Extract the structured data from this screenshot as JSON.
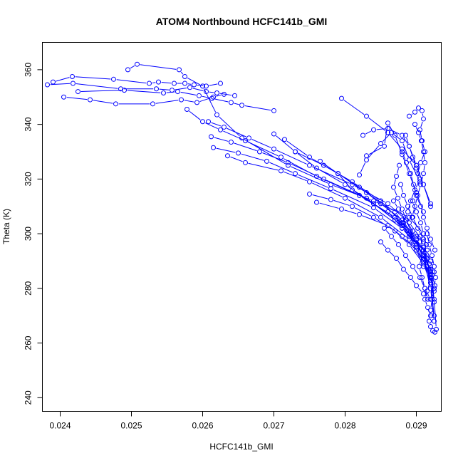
{
  "chart_data": {
    "type": "scatter",
    "title": "ATOM4 Northbound HCFC141b_GMI",
    "xlabel": "HCFC141b_GMI",
    "ylabel": "Theta (K)",
    "xlim": [
      0.02375,
      0.02935
    ],
    "ylim": [
      235,
      370
    ],
    "xticks": [
      "0.024",
      "0.025",
      "0.026",
      "0.027",
      "0.028",
      "0.029"
    ],
    "yticks": [
      "240",
      "260",
      "280",
      "300",
      "320",
      "340",
      "360"
    ],
    "grid": false,
    "legend": "none",
    "style": "points connected by lines",
    "color": "#0000ff",
    "series": [
      {
        "x": [
          0.0239,
          0.02417,
          0.02475,
          0.02525,
          0.02538,
          0.0256,
          0.02575,
          0.02588,
          0.02605,
          0.02625
        ],
        "y": [
          355.5,
          357.5,
          356.5,
          355.0,
          355.5,
          355.0,
          355.0,
          354.5,
          354.0,
          355.0
        ]
      },
      {
        "x": [
          0.02382,
          0.02418,
          0.02485,
          0.02535,
          0.02557,
          0.02582,
          0.02605,
          0.0262,
          0.02645
        ],
        "y": [
          354.5,
          355.0,
          353.0,
          353.0,
          352.5,
          353.5,
          352.0,
          351.5,
          350.5
        ]
      },
      {
        "x": [
          0.02425,
          0.0249,
          0.02545,
          0.02565,
          0.02595,
          0.02613,
          0.0264,
          0.02655,
          0.027
        ],
        "y": [
          352.0,
          352.5,
          351.5,
          352.0,
          350.5,
          349.5,
          348.0,
          347.0,
          345.0
        ]
      },
      {
        "x": [
          0.02405,
          0.02442,
          0.02478,
          0.0253,
          0.0257,
          0.02592,
          0.02615,
          0.0263
        ],
        "y": [
          350.0,
          349.0,
          347.5,
          347.5,
          349.0,
          348.0,
          350.0,
          351.0
        ]
      },
      {
        "x": [
          0.02495,
          0.02508,
          0.02567,
          0.02575,
          0.026,
          0.0262,
          0.02655,
          0.0272,
          0.0278,
          0.0284,
          0.0289,
          0.0291
        ],
        "y": [
          360.0,
          362.0,
          360.0,
          357.5,
          354.0,
          343.5,
          335.0,
          325.0,
          318.0,
          312.0,
          306.0,
          300.0
        ]
      },
      {
        "x": [
          0.02578,
          0.026,
          0.02625,
          0.0266,
          0.0271,
          0.0276,
          0.0282,
          0.0287,
          0.029
        ],
        "y": [
          345.5,
          341.0,
          338.0,
          334.0,
          328.0,
          321.0,
          314.0,
          306.0,
          299.0
        ]
      },
      {
        "x": [
          0.02608,
          0.0263,
          0.02665,
          0.027,
          0.0275,
          0.0281,
          0.0286,
          0.0289,
          0.0291
        ],
        "y": [
          341.0,
          339.0,
          335.0,
          331.0,
          325.0,
          318.0,
          311.0,
          304.0,
          297.0
        ]
      },
      {
        "x": [
          0.02612,
          0.0264,
          0.0268,
          0.0272,
          0.0277,
          0.0283,
          0.0287,
          0.029,
          0.0292
        ],
        "y": [
          335.5,
          333.5,
          330.0,
          326.0,
          320.0,
          313.0,
          305.0,
          298.0,
          290.0
        ]
      },
      {
        "x": [
          0.02615,
          0.0265,
          0.0269,
          0.0273,
          0.0278,
          0.0284,
          0.0288,
          0.0291,
          0.0292
        ],
        "y": [
          331.5,
          329.5,
          326.5,
          322.0,
          316.5,
          309.5,
          302.0,
          294.0,
          285.0
        ]
      },
      {
        "x": [
          0.02635,
          0.0266,
          0.0271,
          0.0275,
          0.028,
          0.0285,
          0.0289,
          0.0291,
          0.02925
        ],
        "y": [
          328.5,
          326.0,
          323.0,
          319.0,
          313.0,
          306.0,
          298.0,
          290.0,
          280.0
        ]
      },
      {
        "x": [
          0.027,
          0.0273,
          0.0276,
          0.028,
          0.0284,
          0.0288,
          0.029,
          0.0292,
          0.02925
        ],
        "y": [
          336.5,
          330.0,
          324.0,
          318.0,
          311.0,
          303.0,
          295.0,
          285.0,
          275.0
        ]
      },
      {
        "x": [
          0.02715,
          0.0275,
          0.0279,
          0.0283,
          0.0287,
          0.0289,
          0.0291,
          0.0292,
          0.02925
        ],
        "y": [
          334.5,
          328.0,
          322.0,
          315.0,
          308.0,
          301.0,
          292.0,
          282.0,
          270.0
        ]
      },
      {
        "x": [
          0.0273,
          0.0277,
          0.0281,
          0.0285,
          0.0288,
          0.029,
          0.0292,
          0.02925,
          0.02928
        ],
        "y": [
          330.0,
          325.0,
          319.0,
          312.0,
          304.0,
          296.0,
          287.0,
          276.0,
          265.0
        ]
      },
      {
        "x": [
          0.02765,
          0.0279,
          0.0282,
          0.0285,
          0.0288,
          0.029,
          0.0291,
          0.0292,
          0.02925
        ],
        "y": [
          326.5,
          322.0,
          317.0,
          311.0,
          305.0,
          298.0,
          291.0,
          280.0,
          268.0
        ]
      },
      {
        "x": [
          0.0275,
          0.0278,
          0.0281,
          0.0284,
          0.0287,
          0.0289,
          0.0291,
          0.0292
        ],
        "y": [
          314.5,
          312.5,
          310.0,
          306.0,
          301.0,
          296.0,
          289.0,
          282.0
        ]
      },
      {
        "x": [
          0.0276,
          0.02795,
          0.0282,
          0.0286,
          0.0288,
          0.029,
          0.0291
        ],
        "y": [
          311.5,
          309.0,
          307.0,
          303.0,
          299.0,
          294.0,
          288.0
        ]
      },
      {
        "x": [
          0.0279,
          0.0281,
          0.0284,
          0.0287,
          0.0289,
          0.0291,
          0.0292
        ],
        "y": [
          322.0,
          316.0,
          311.0,
          306.0,
          300.0,
          294.0,
          286.0
        ]
      },
      {
        "x": [
          0.02795,
          0.0283,
          0.0286,
          0.0288,
          0.029,
          0.0291,
          0.0292
        ],
        "y": [
          349.5,
          343.0,
          337.0,
          331.0,
          325.0,
          318.0,
          311.0
        ]
      },
      {
        "x": [
          0.02825,
          0.0284,
          0.0286,
          0.0288,
          0.0289,
          0.029,
          0.0291,
          0.0292
        ],
        "y": [
          336.0,
          338.0,
          338.5,
          336.0,
          332.0,
          325.0,
          318.0,
          310.0
        ]
      },
      {
        "x": [
          0.0283,
          0.02855,
          0.0286,
          0.0287,
          0.0288,
          0.0289,
          0.029,
          0.0291
        ],
        "y": [
          328.5,
          332.0,
          340.5,
          336.0,
          329.0,
          322.0,
          315.0,
          308.0
        ]
      },
      {
        "x": [
          0.0282,
          0.0283,
          0.0285,
          0.02865,
          0.0288,
          0.0289,
          0.02905
        ],
        "y": [
          321.5,
          327.0,
          333.0,
          337.0,
          334.0,
          327.0,
          319.0
        ]
      },
      {
        "x": [
          0.0289,
          0.02898,
          0.02903,
          0.02908,
          0.0291,
          0.02905,
          0.02908,
          0.02912,
          0.02906,
          0.02902
        ],
        "y": [
          343.0,
          344.5,
          346.0,
          345.0,
          342.0,
          338.0,
          334.0,
          330.0,
          326.0,
          322.0
        ]
      },
      {
        "x": [
          0.02885,
          0.0289,
          0.02895,
          0.029,
          0.02905,
          0.02898,
          0.02892,
          0.02888,
          0.02882
        ],
        "y": [
          336.0,
          332.0,
          328.0,
          324.0,
          320.0,
          316.0,
          312.0,
          308.0,
          304.0
        ]
      },
      {
        "x": [
          0.02878,
          0.02882,
          0.02888,
          0.02895,
          0.02902,
          0.0291,
          0.02915,
          0.0292,
          0.02925
        ],
        "y": [
          318.0,
          314.0,
          310.0,
          306.0,
          302.0,
          298.0,
          294.0,
          290.0,
          286.0
        ]
      },
      {
        "x": [
          0.02868,
          0.02875,
          0.02885,
          0.02895,
          0.02905,
          0.02912,
          0.02918,
          0.02922,
          0.02926
        ],
        "y": [
          312.0,
          309.0,
          305.0,
          301.0,
          297.0,
          293.0,
          289.0,
          285.0,
          281.0
        ]
      },
      {
        "x": [
          0.0286,
          0.0287,
          0.0288,
          0.0289,
          0.029,
          0.0291,
          0.02915,
          0.0292,
          0.02925
        ],
        "y": [
          308.0,
          305.0,
          302.0,
          299.0,
          296.0,
          292.0,
          288.0,
          284.0,
          279.0
        ]
      },
      {
        "x": [
          0.02855,
          0.02865,
          0.02875,
          0.02885,
          0.02895,
          0.02905,
          0.02912,
          0.0292
        ],
        "y": [
          302.0,
          299.0,
          296.0,
          292.0,
          288.0,
          284.0,
          280.0,
          276.0
        ]
      },
      {
        "x": [
          0.0285,
          0.0286,
          0.02872,
          0.02882,
          0.02892,
          0.029,
          0.0291
        ],
        "y": [
          297.0,
          294.0,
          291.0,
          287.0,
          284.0,
          281.0,
          278.0
        ]
      },
      {
        "x": [
          0.02915,
          0.02918,
          0.02922,
          0.02925,
          0.02927,
          0.02925,
          0.02922,
          0.0292,
          0.02918,
          0.0292,
          0.02923,
          0.02926
        ],
        "y": [
          300.0,
          296.0,
          292.0,
          288.0,
          284.0,
          280.0,
          276.0,
          272.0,
          268.0,
          266.0,
          264.5,
          264.0
        ]
      },
      {
        "x": [
          0.02905,
          0.0291,
          0.02915,
          0.02918,
          0.0292,
          0.02915,
          0.02912,
          0.02916,
          0.0292
        ],
        "y": [
          299.0,
          295.0,
          291.0,
          287.0,
          283.0,
          279.0,
          276.0,
          273.0,
          270.0
        ]
      },
      {
        "x": [
          0.02895,
          0.029,
          0.02906,
          0.0291,
          0.02914,
          0.02908,
          0.02904,
          0.02908,
          0.02912,
          0.02916
        ],
        "y": [
          312.0,
          308.0,
          304.0,
          300.0,
          296.0,
          292.0,
          288.0,
          284.0,
          280.0,
          276.0
        ]
      },
      {
        "x": [
          0.0288,
          0.02886,
          0.02892,
          0.02896,
          0.029,
          0.02906,
          0.0291,
          0.02915,
          0.0292,
          0.02926
        ],
        "y": [
          330.0,
          326.0,
          322.0,
          318.0,
          314.0,
          310.0,
          306.0,
          302.0,
          298.0,
          294.0
        ]
      },
      {
        "x": [
          0.02898,
          0.02903,
          0.02907,
          0.0291,
          0.02912,
          0.0291,
          0.02906,
          0.02902,
          0.02898,
          0.02894
        ],
        "y": [
          340.0,
          337.0,
          334.0,
          330.0,
          326.0,
          322.0,
          318.0,
          314.0,
          310.0,
          306.0
        ]
      },
      {
        "x": [
          0.02876,
          0.02872,
          0.02868,
          0.02874,
          0.0288,
          0.02886,
          0.02892,
          0.02898
        ],
        "y": [
          325.0,
          321.0,
          317.0,
          313.0,
          309.0,
          305.0,
          301.0,
          297.0
        ]
      }
    ]
  }
}
